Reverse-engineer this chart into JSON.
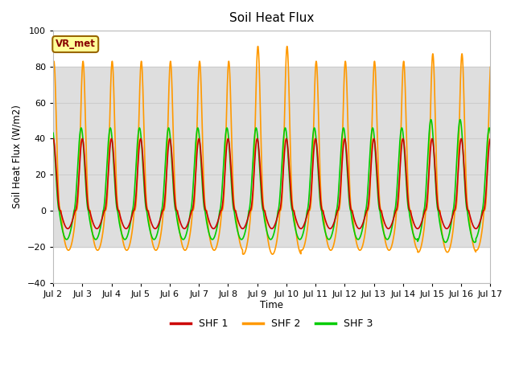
{
  "title": "Soil Heat Flux",
  "ylabel": "Soil Heat Flux (W/m2)",
  "xlabel": "Time",
  "ylim": [
    -40,
    100
  ],
  "xlim_days": [
    0,
    15
  ],
  "yticks": [
    -40,
    -20,
    0,
    20,
    40,
    60,
    80,
    100
  ],
  "xtick_labels": [
    "Jul 2",
    "Jul 3",
    "Jul 4",
    "Jul 5",
    "Jul 6",
    "Jul 7",
    "Jul 8",
    "Jul 9",
    "Jul 10",
    "Jul 11",
    "Jul 12",
    "Jul 13",
    "Jul 14",
    "Jul 15",
    "Jul 16",
    "Jul 17"
  ],
  "shf1_color": "#cc0000",
  "shf2_color": "#ff9900",
  "shf3_color": "#00cc00",
  "shf1_label": "SHF 1",
  "shf2_label": "SHF 2",
  "shf3_label": "SHF 3",
  "annotation_text": "VR_met",
  "annotation_facecolor": "#ffff99",
  "annotation_edgecolor": "#996600",
  "bg_band_ymin": -20,
  "bg_band_ymax": 80,
  "bg_band_color": "#dedede",
  "num_days": 15,
  "samples_per_day": 288,
  "linewidth": 1.2,
  "background_color": "#ffffff",
  "grid_color": "#cccccc"
}
